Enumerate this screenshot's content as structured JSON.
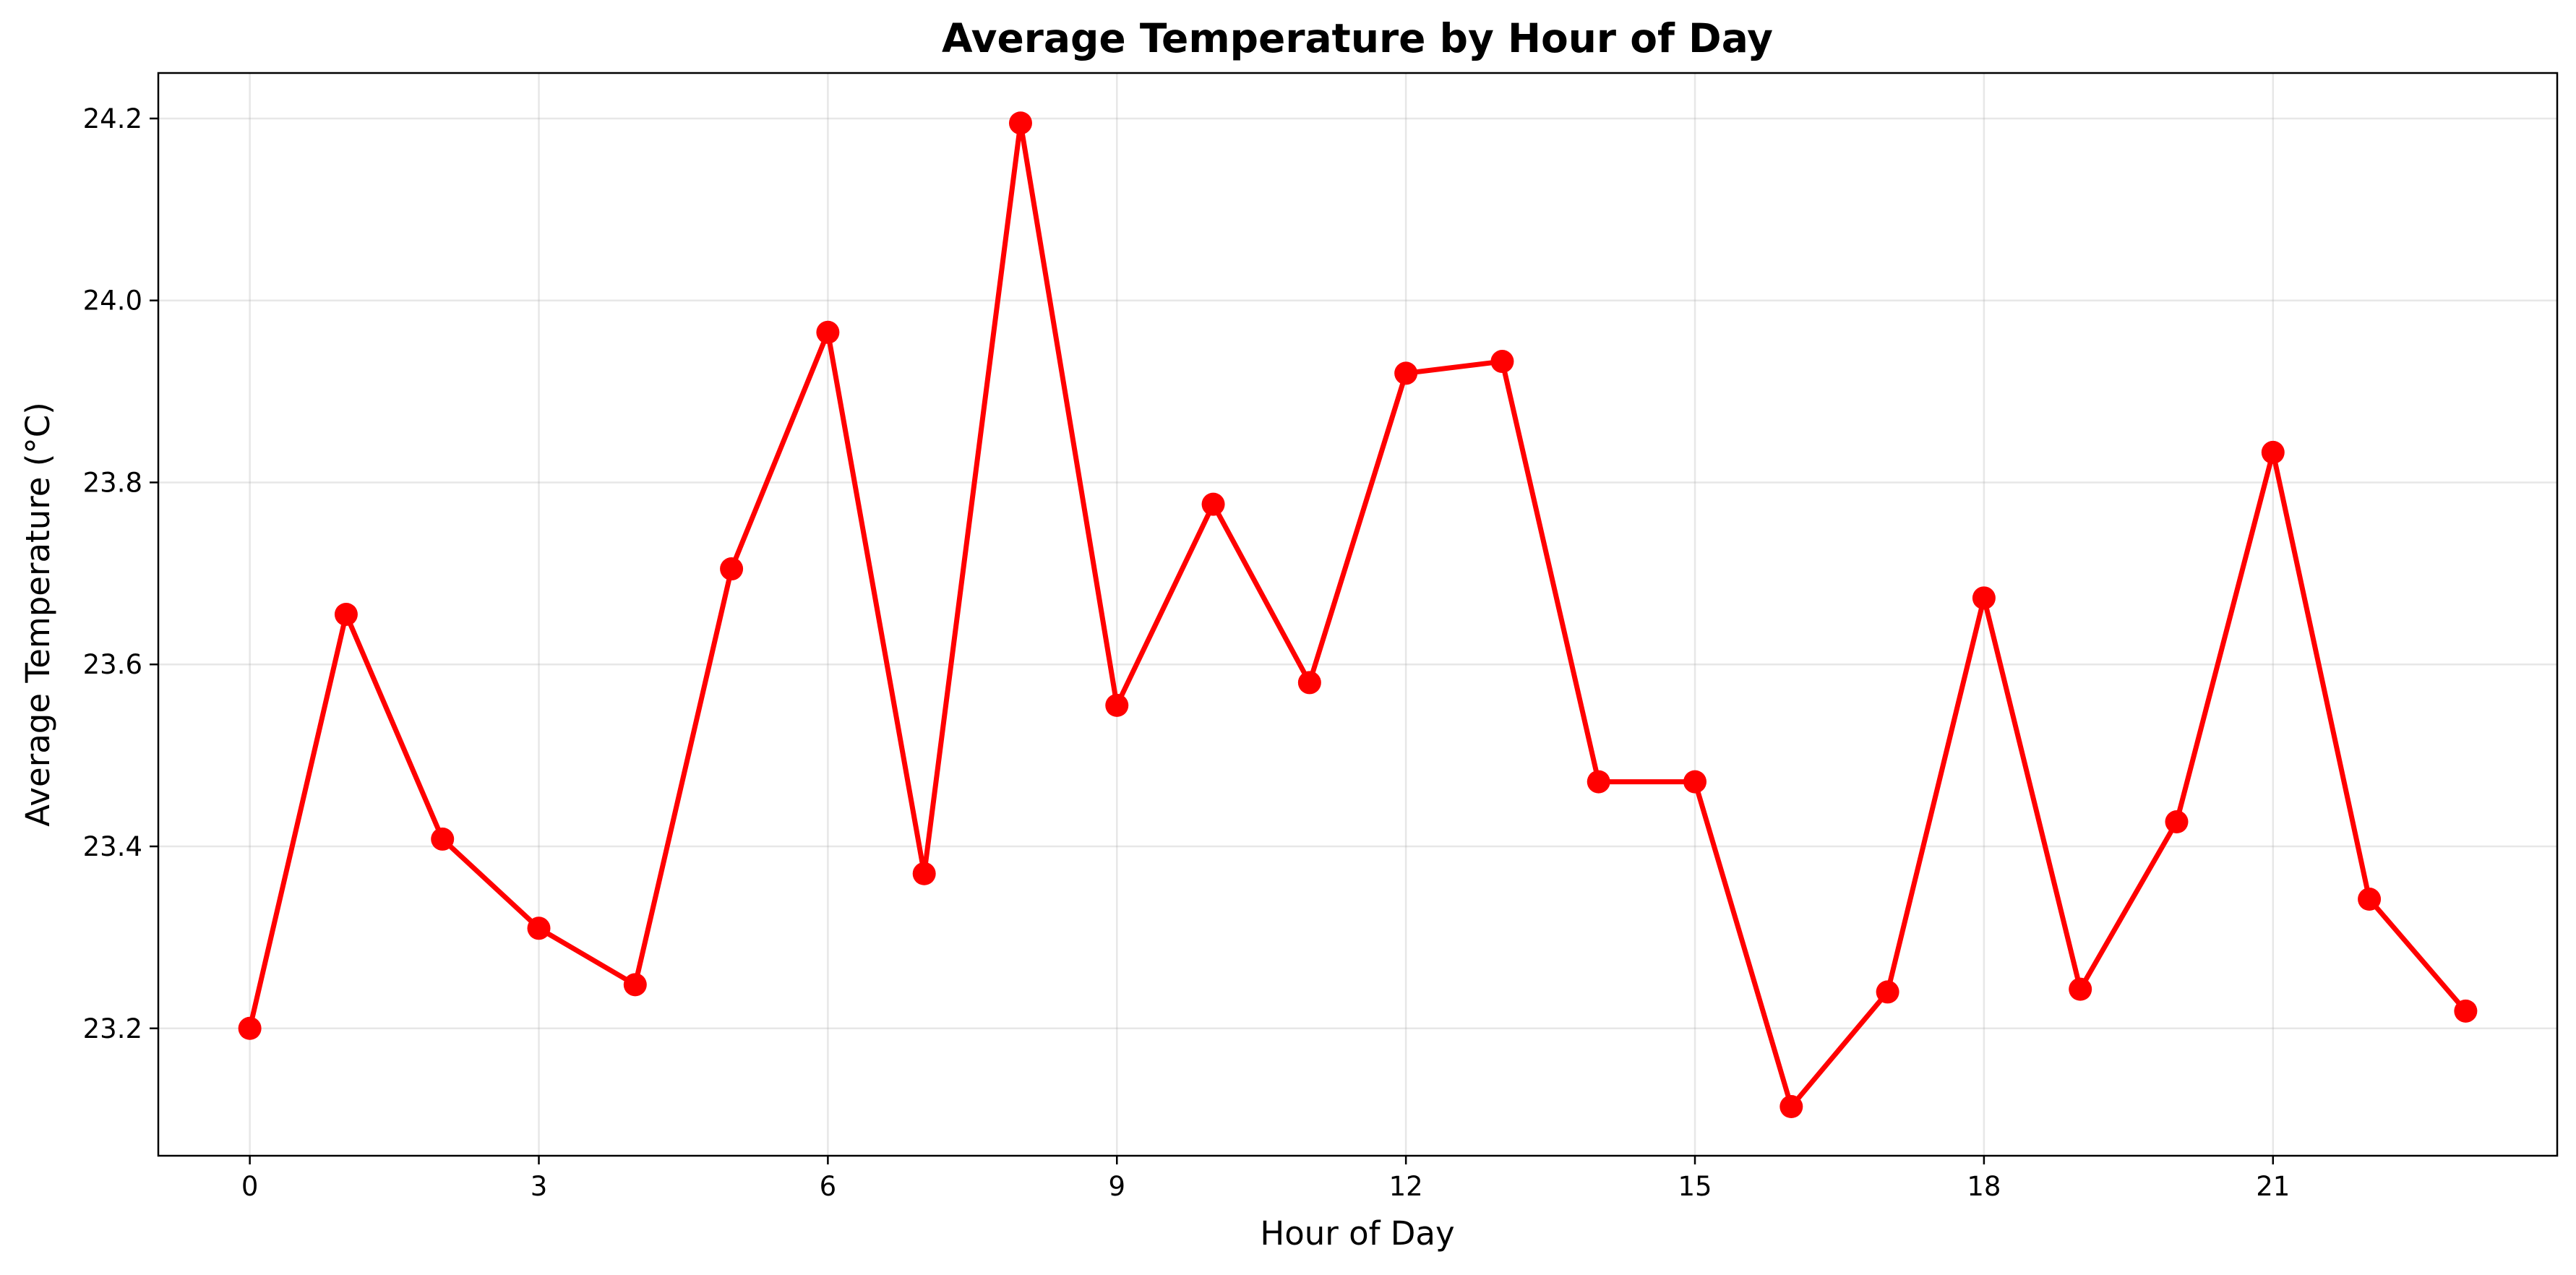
{
  "chart_data": {
    "type": "line",
    "title": "Average Temperature by Hour of Day",
    "xlabel": "Hour of Day",
    "ylabel": "Average Temperature (°C)",
    "x": [
      0,
      1,
      2,
      3,
      4,
      5,
      6,
      7,
      8,
      9,
      10,
      11,
      12,
      13,
      14,
      15,
      16,
      17,
      18,
      19,
      20,
      21,
      22,
      23
    ],
    "series": [
      {
        "values": [
          23.2,
          23.655,
          23.408,
          23.31,
          23.248,
          23.705,
          23.965,
          23.37,
          24.195,
          23.555,
          23.776,
          23.58,
          23.92,
          23.933,
          23.471,
          23.471,
          23.114,
          23.24,
          23.673,
          23.243,
          23.427,
          23.833,
          23.342,
          23.219
        ],
        "color": "#ff0000",
        "marker": "circle"
      }
    ],
    "xlim": [
      -0.95,
      23.95
    ],
    "ylim": [
      23.06,
      24.25
    ],
    "xticks": [
      0,
      3,
      6,
      9,
      12,
      15,
      18,
      21
    ],
    "xtick_labels": [
      "0",
      "3",
      "6",
      "9",
      "12",
      "15",
      "18",
      "21"
    ],
    "yticks": [
      23.2,
      23.4,
      23.6,
      23.8,
      24.0,
      24.2
    ],
    "ytick_labels": [
      "23.2",
      "23.4",
      "23.6",
      "23.8",
      "24.0",
      "24.2"
    ],
    "grid": true,
    "legend": "none"
  }
}
